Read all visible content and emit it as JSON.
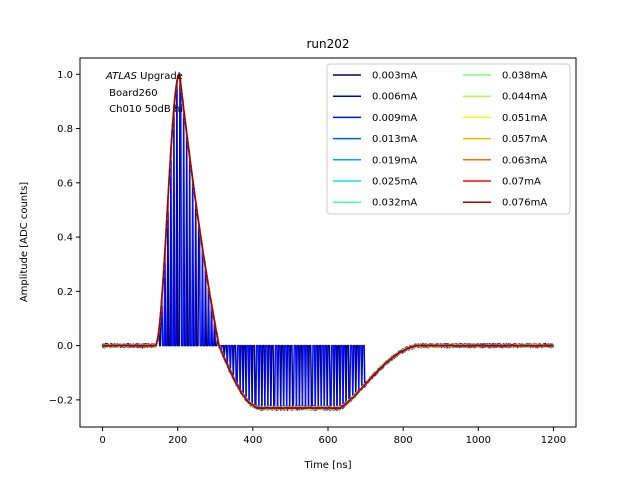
{
  "chart_data": {
    "type": "line",
    "title": "run202",
    "xlabel": "Time [ns]",
    "ylabel": "Amplitude [ADC counts]",
    "xlim": [
      -60,
      1260
    ],
    "ylim": [
      -0.3,
      1.06
    ],
    "xticks": [
      0,
      200,
      400,
      600,
      800,
      1000,
      1200
    ],
    "yticks": [
      -0.2,
      0.0,
      0.2,
      0.4,
      0.6,
      0.8,
      1.0
    ],
    "xtick_labels": [
      "0",
      "200",
      "400",
      "600",
      "800",
      "1000",
      "1200"
    ],
    "ytick_labels": [
      "−0.2",
      "0.0",
      "0.2",
      "0.4",
      "0.6",
      "0.8",
      "1.0"
    ],
    "grid": false,
    "legend_position": "top-right",
    "legend_columns": 2,
    "annotation": {
      "line1_italic": "ATLAS",
      "line1_rest": " Upgrade",
      "line2": " Board260",
      "line3": " Ch010 50dB hi"
    },
    "pulse_shape": {
      "baseline_end_ns": 140,
      "peak_ns": 205,
      "peak_value": 1.0,
      "zero_crossing_ns": 310,
      "undershoot_min": -0.23,
      "undershoot_plateau_ns": [
        420,
        630
      ],
      "recovery_end_ns": 850,
      "sampling_period_ns": 25
    },
    "series": [
      {
        "name": "0.003mA",
        "color": "#00007f"
      },
      {
        "name": "0.006mA",
        "color": "#0000d1"
      },
      {
        "name": "0.009mA",
        "color": "#0010ff"
      },
      {
        "name": "0.013mA",
        "color": "#005cff"
      },
      {
        "name": "0.019mA",
        "color": "#00a8ff"
      },
      {
        "name": "0.025mA",
        "color": "#16e0e6"
      },
      {
        "name": "0.032mA",
        "color": "#49ffad"
      },
      {
        "name": "0.038mA",
        "color": "#7dff7a"
      },
      {
        "name": "0.044mA",
        "color": "#b0ff46"
      },
      {
        "name": "0.051mA",
        "color": "#e4ff13"
      },
      {
        "name": "0.057mA",
        "color": "#ffb700"
      },
      {
        "name": "0.063mA",
        "color": "#ff6c00"
      },
      {
        "name": "0.07mA",
        "color": "#f10f00"
      },
      {
        "name": "0.076mA",
        "color": "#a40000"
      }
    ]
  }
}
